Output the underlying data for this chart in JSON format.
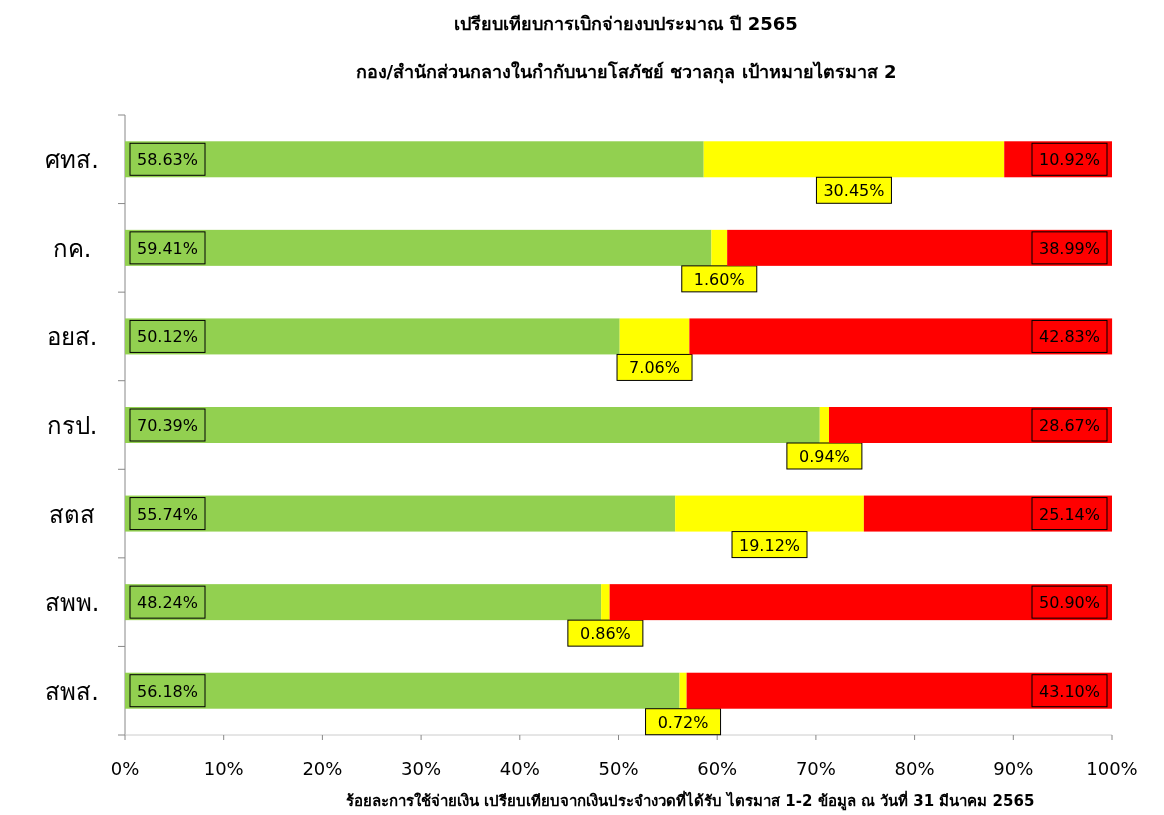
{
  "chart_data": {
    "type": "bar",
    "orientation": "horizontal",
    "stacked": true,
    "title": "เปรียบเทียบการเบิกจ่ายงบประมาณ ปี 2565",
    "subtitle": "กอง/สำนักส่วนกลางในกำกับนายโสภัชย์ ชวาลกุล เป้าหมายไตรมาส 2",
    "xlabel": "ร้อยละการใช้จ่ายเงิน เปรียบเทียบจากเงินประจำงวดที่ได้รับ ไตรมาส 1-2  ข้อมูล ณ วันที่ 31 มีนาคม 2565",
    "categories": [
      "ศทส.",
      "กค.",
      "อยส.",
      "กรป.",
      "สตส",
      "สพพ.",
      "สพส."
    ],
    "series": [
      {
        "color": "#92d050",
        "values": [
          58.63,
          59.41,
          50.12,
          70.39,
          55.74,
          48.24,
          56.18
        ],
        "value_labels": [
          "58.63%",
          "59.41%",
          "50.12%",
          "70.39%",
          "55.74%",
          "48.24%",
          "56.18%"
        ]
      },
      {
        "color": "#ffff00",
        "values": [
          30.45,
          1.6,
          7.06,
          0.94,
          19.12,
          0.86,
          0.72
        ],
        "value_labels": [
          "30.45%",
          "1.60%",
          "7.06%",
          "0.94%",
          "19.12%",
          "0.86%",
          "0.72%"
        ]
      },
      {
        "color": "#ff0000",
        "values": [
          10.92,
          38.99,
          42.83,
          28.67,
          25.14,
          50.9,
          43.1
        ],
        "value_labels": [
          "10.92%",
          "38.99%",
          "42.83%",
          "28.67%",
          "25.14%",
          "50.90%",
          "43.10%"
        ]
      }
    ],
    "xlim": [
      0,
      100
    ],
    "xticks": [
      {
        "value": 0,
        "label": "0%"
      },
      {
        "value": 10,
        "label": "10%"
      },
      {
        "value": 20,
        "label": "20%"
      },
      {
        "value": 30,
        "label": "30%"
      },
      {
        "value": 40,
        "label": "40%"
      },
      {
        "value": 50,
        "label": "50%"
      },
      {
        "value": 60,
        "label": "60%"
      },
      {
        "value": 70,
        "label": "70%"
      },
      {
        "value": 80,
        "label": "80%"
      },
      {
        "value": 90,
        "label": "90%"
      },
      {
        "value": 100,
        "label": "100%"
      }
    ]
  }
}
